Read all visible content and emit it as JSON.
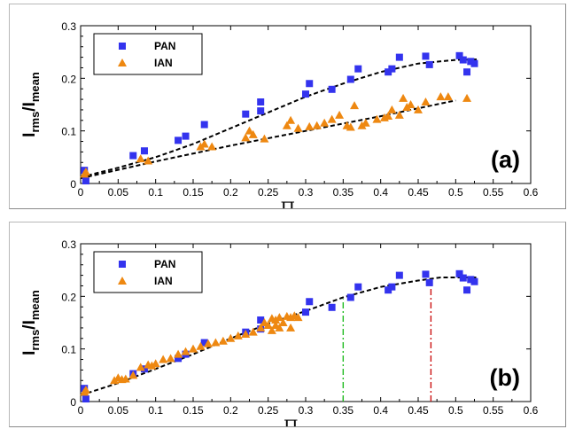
{
  "chart_data": [
    {
      "type": "scatter",
      "panel_label": "(a)",
      "ylabel": "I_rms/I_mean",
      "xlabel": "Π_PAN",
      "xlim": [
        0,
        0.6
      ],
      "ylim": [
        0,
        0.3
      ],
      "x_ticks": [
        "0",
        "0.05",
        "0.1",
        "0.15",
        "0.2",
        "0.25",
        "0.3",
        "0.35",
        "0.4",
        "0.45",
        "0.5",
        "0.55",
        "0.6"
      ],
      "y_ticks": [
        "0",
        "0.1",
        "0.2",
        "0.3"
      ],
      "legend_position": "top-left",
      "series": [
        {
          "name": "PAN",
          "marker": "square",
          "color": "#3333ee",
          "points": [
            [
              0.005,
              0.025
            ],
            [
              0.007,
              0.005
            ],
            [
              0.07,
              0.053
            ],
            [
              0.085,
              0.062
            ],
            [
              0.13,
              0.082
            ],
            [
              0.14,
              0.09
            ],
            [
              0.165,
              0.112
            ],
            [
              0.22,
              0.132
            ],
            [
              0.24,
              0.138
            ],
            [
              0.24,
              0.155
            ],
            [
              0.3,
              0.17
            ],
            [
              0.305,
              0.19
            ],
            [
              0.335,
              0.179
            ],
            [
              0.36,
              0.198
            ],
            [
              0.37,
              0.218
            ],
            [
              0.41,
              0.212
            ],
            [
              0.415,
              0.218
            ],
            [
              0.425,
              0.24
            ],
            [
              0.46,
              0.242
            ],
            [
              0.465,
              0.226
            ],
            [
              0.505,
              0.243
            ],
            [
              0.51,
              0.235
            ],
            [
              0.515,
              0.212
            ],
            [
              0.52,
              0.232
            ],
            [
              0.525,
              0.228
            ]
          ]
        },
        {
          "name": "IAN",
          "marker": "triangle",
          "color": "#ee8811",
          "points": [
            [
              0.005,
              0.018
            ],
            [
              0.007,
              0.022
            ],
            [
              0.08,
              0.047
            ],
            [
              0.09,
              0.043
            ],
            [
              0.16,
              0.07
            ],
            [
              0.165,
              0.075
            ],
            [
              0.175,
              0.07
            ],
            [
              0.22,
              0.087
            ],
            [
              0.225,
              0.1
            ],
            [
              0.23,
              0.093
            ],
            [
              0.245,
              0.085
            ],
            [
              0.275,
              0.11
            ],
            [
              0.28,
              0.12
            ],
            [
              0.29,
              0.105
            ],
            [
              0.305,
              0.108
            ],
            [
              0.315,
              0.11
            ],
            [
              0.325,
              0.115
            ],
            [
              0.335,
              0.122
            ],
            [
              0.345,
              0.13
            ],
            [
              0.355,
              0.11
            ],
            [
              0.36,
              0.107
            ],
            [
              0.365,
              0.148
            ],
            [
              0.375,
              0.11
            ],
            [
              0.38,
              0.115
            ],
            [
              0.395,
              0.122
            ],
            [
              0.405,
              0.125
            ],
            [
              0.41,
              0.128
            ],
            [
              0.415,
              0.14
            ],
            [
              0.425,
              0.13
            ],
            [
              0.43,
              0.162
            ],
            [
              0.435,
              0.145
            ],
            [
              0.44,
              0.15
            ],
            [
              0.45,
              0.14
            ],
            [
              0.46,
              0.155
            ],
            [
              0.48,
              0.165
            ],
            [
              0.49,
              0.165
            ],
            [
              0.515,
              0.162
            ]
          ]
        }
      ],
      "fits": [
        {
          "points": [
            [
              0.0,
              0.012
            ],
            [
              0.05,
              0.03
            ],
            [
              0.1,
              0.05
            ],
            [
              0.15,
              0.075
            ],
            [
              0.2,
              0.105
            ],
            [
              0.25,
              0.135
            ],
            [
              0.3,
              0.165
            ],
            [
              0.35,
              0.19
            ],
            [
              0.4,
              0.212
            ],
            [
              0.45,
              0.228
            ],
            [
              0.5,
              0.235
            ],
            [
              0.53,
              0.236
            ]
          ]
        },
        {
          "points": [
            [
              0.0,
              0.01
            ],
            [
              0.1,
              0.042
            ],
            [
              0.2,
              0.072
            ],
            [
              0.3,
              0.1
            ],
            [
              0.4,
              0.128
            ],
            [
              0.5,
              0.158
            ]
          ]
        }
      ]
    },
    {
      "type": "scatter",
      "panel_label": "(b)",
      "ylabel": "I_rms/I_mean",
      "xlabel": "Π_loc",
      "xlim": [
        0,
        0.6
      ],
      "ylim": [
        0,
        0.3
      ],
      "x_ticks": [
        "0",
        "0.05",
        "0.1",
        "0.15",
        "0.2",
        "0.25",
        "0.3",
        "0.35",
        "0.4",
        "0.45",
        "0.5",
        "0.55",
        "0.6"
      ],
      "y_ticks": [
        "0",
        "0.1",
        "0.2",
        "0.3"
      ],
      "legend_position": "top-left",
      "series": [
        {
          "name": "PAN",
          "marker": "square",
          "color": "#3333ee",
          "points": [
            [
              0.005,
              0.025
            ],
            [
              0.007,
              0.005
            ],
            [
              0.07,
              0.053
            ],
            [
              0.085,
              0.062
            ],
            [
              0.13,
              0.082
            ],
            [
              0.14,
              0.09
            ],
            [
              0.165,
              0.112
            ],
            [
              0.22,
              0.132
            ],
            [
              0.24,
              0.138
            ],
            [
              0.24,
              0.155
            ],
            [
              0.3,
              0.17
            ],
            [
              0.305,
              0.19
            ],
            [
              0.335,
              0.179
            ],
            [
              0.36,
              0.198
            ],
            [
              0.37,
              0.218
            ],
            [
              0.41,
              0.212
            ],
            [
              0.415,
              0.218
            ],
            [
              0.425,
              0.24
            ],
            [
              0.46,
              0.242
            ],
            [
              0.465,
              0.226
            ],
            [
              0.505,
              0.243
            ],
            [
              0.51,
              0.235
            ],
            [
              0.515,
              0.212
            ],
            [
              0.52,
              0.232
            ],
            [
              0.525,
              0.228
            ]
          ]
        },
        {
          "name": "IAN",
          "marker": "triangle",
          "color": "#ee8811",
          "points": [
            [
              0.005,
              0.018
            ],
            [
              0.007,
              0.022
            ],
            [
              0.045,
              0.04
            ],
            [
              0.05,
              0.045
            ],
            [
              0.055,
              0.042
            ],
            [
              0.06,
              0.043
            ],
            [
              0.07,
              0.05
            ],
            [
              0.08,
              0.065
            ],
            [
              0.09,
              0.07
            ],
            [
              0.095,
              0.068
            ],
            [
              0.1,
              0.072
            ],
            [
              0.11,
              0.08
            ],
            [
              0.12,
              0.082
            ],
            [
              0.13,
              0.09
            ],
            [
              0.14,
              0.095
            ],
            [
              0.15,
              0.1
            ],
            [
              0.16,
              0.105
            ],
            [
              0.17,
              0.11
            ],
            [
              0.18,
              0.112
            ],
            [
              0.19,
              0.115
            ],
            [
              0.2,
              0.12
            ],
            [
              0.21,
              0.125
            ],
            [
              0.22,
              0.128
            ],
            [
              0.23,
              0.132
            ],
            [
              0.24,
              0.14
            ],
            [
              0.245,
              0.15
            ],
            [
              0.25,
              0.145
            ],
            [
              0.255,
              0.158
            ],
            [
              0.26,
              0.155
            ],
            [
              0.265,
              0.16
            ],
            [
              0.27,
              0.15
            ],
            [
              0.275,
              0.162
            ],
            [
              0.28,
              0.16
            ],
            [
              0.285,
              0.163
            ],
            [
              0.29,
              0.16
            ],
            [
              0.255,
              0.135
            ],
            [
              0.265,
              0.14
            ],
            [
              0.28,
              0.14
            ],
            [
              0.26,
              0.145
            ]
          ]
        }
      ],
      "fits": [
        {
          "points": [
            [
              0.0,
              0.012
            ],
            [
              0.05,
              0.035
            ],
            [
              0.1,
              0.062
            ],
            [
              0.15,
              0.09
            ],
            [
              0.2,
              0.12
            ],
            [
              0.25,
              0.148
            ],
            [
              0.3,
              0.172
            ],
            [
              0.35,
              0.198
            ],
            [
              0.4,
              0.218
            ],
            [
              0.45,
              0.23
            ],
            [
              0.48,
              0.236
            ],
            [
              0.53,
              0.236
            ]
          ]
        }
      ],
      "vlines": [
        {
          "x": 0.35,
          "color": "#22bb22"
        },
        {
          "x": 0.467,
          "color": "#cc1111"
        }
      ]
    }
  ]
}
